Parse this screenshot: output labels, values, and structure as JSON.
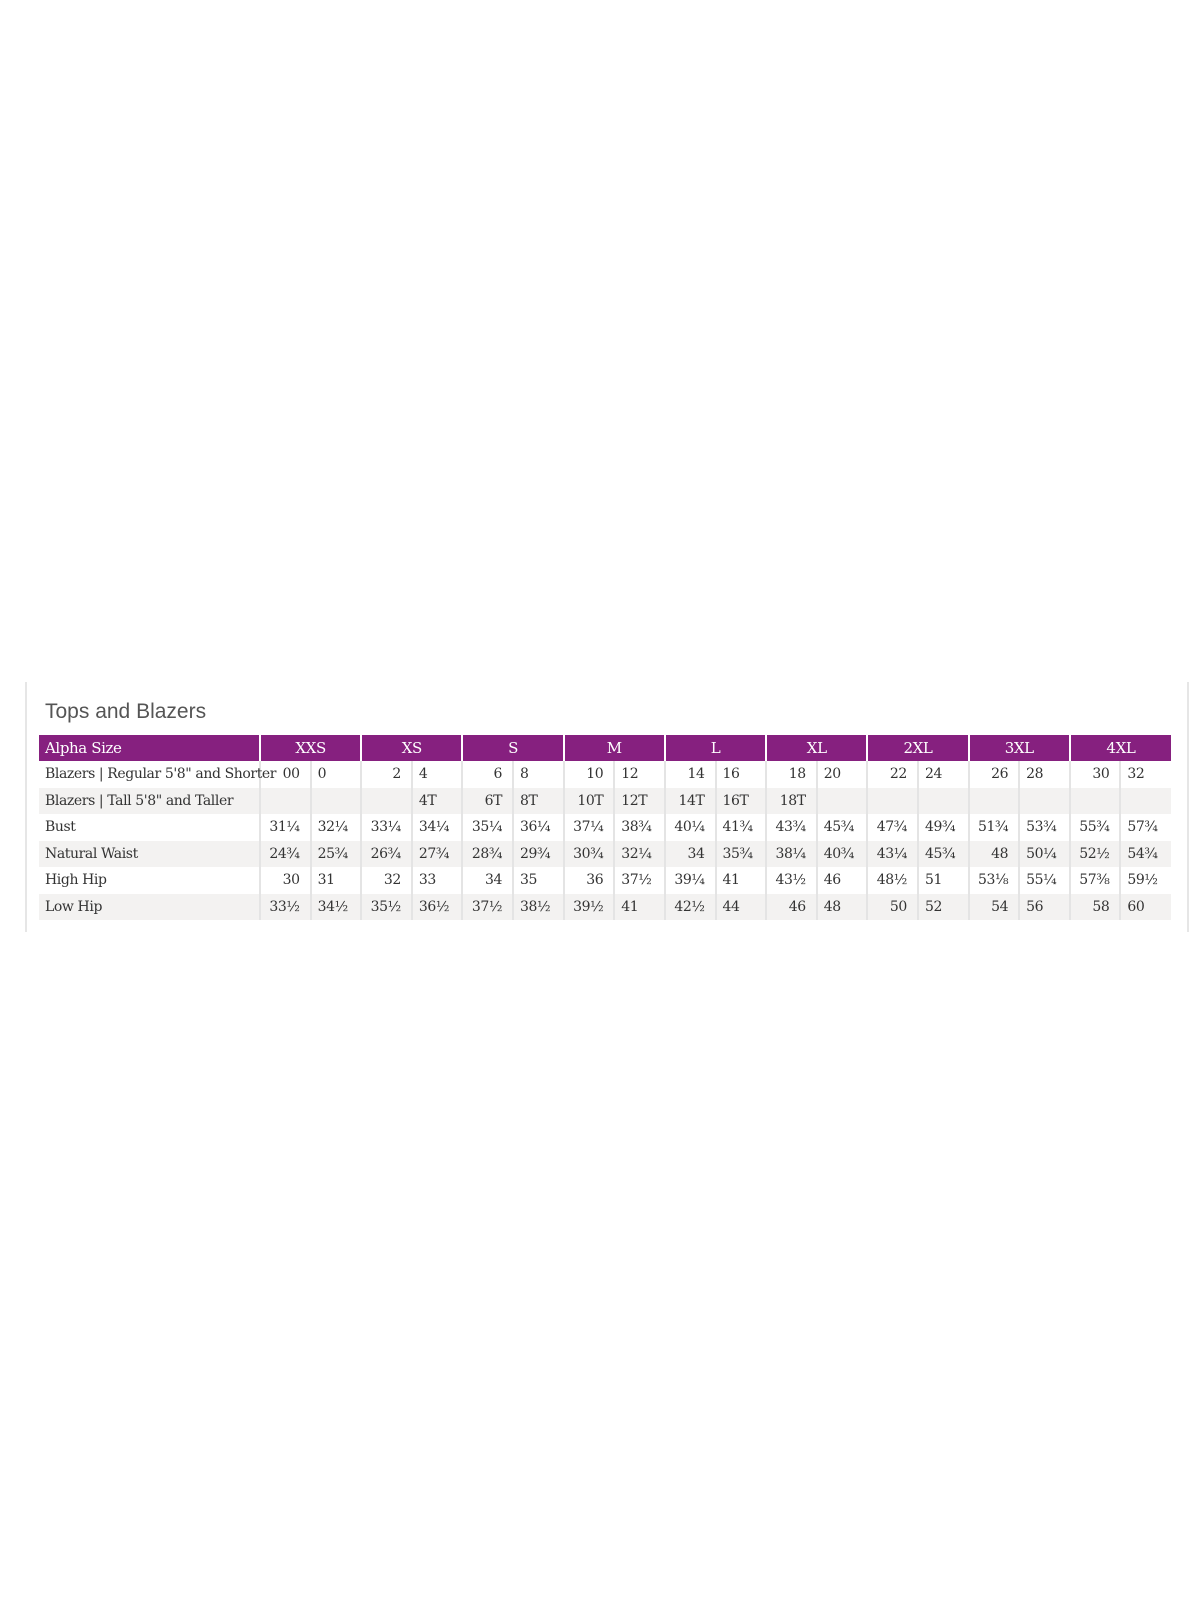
{
  "title": "Tops and Blazers",
  "header": {
    "label": "Alpha Size",
    "sizes": [
      "XXS",
      "XS",
      "S",
      "M",
      "L",
      "XL",
      "2XL",
      "3XL",
      "4XL"
    ]
  },
  "colors": {
    "header_bg": "#86207f",
    "alt_row": "#f3f2f1"
  },
  "rows": [
    {
      "label": "Blazers | Regular 5'8\" and Shorter",
      "values": [
        "00",
        "0",
        "2",
        "4",
        "6",
        "8",
        "10",
        "12",
        "14",
        "16",
        "18",
        "20",
        "22",
        "24",
        "26",
        "28",
        "30",
        "32"
      ]
    },
    {
      "label": "Blazers | Tall 5'8\" and Taller",
      "values": [
        "",
        "",
        "",
        "4T",
        "6T",
        "8T",
        "10T",
        "12T",
        "14T",
        "16T",
        "18T",
        "",
        "",
        "",
        "",
        "",
        "",
        ""
      ]
    },
    {
      "label": "Bust",
      "values": [
        "31¼",
        "32¼",
        "33¼",
        "34¼",
        "35¼",
        "36¼",
        "37¼",
        "38¾",
        "40¼",
        "41¾",
        "43¾",
        "45¾",
        "47¾",
        "49¾",
        "51¾",
        "53¾",
        "55¾",
        "57¾"
      ]
    },
    {
      "label": "Natural Waist",
      "values": [
        "24¾",
        "25¾",
        "26¾",
        "27¾",
        "28¾",
        "29¾",
        "30¾",
        "32¼",
        "34",
        "35¾",
        "38¼",
        "40¾",
        "43¼",
        "45¾",
        "48",
        "50¼",
        "52½",
        "54¾"
      ]
    },
    {
      "label": "High Hip",
      "values": [
        "30",
        "31",
        "32",
        "33",
        "34",
        "35",
        "36",
        "37½",
        "39¼",
        "41",
        "43½",
        "46",
        "48½",
        "51",
        "53⅛",
        "55¼",
        "57⅜",
        "59½"
      ]
    },
    {
      "label": "Low Hip",
      "values": [
        "33½",
        "34½",
        "35½",
        "36½",
        "37½",
        "38½",
        "39½",
        "41",
        "42½",
        "44",
        "46",
        "48",
        "50",
        "52",
        "54",
        "56",
        "58",
        "60"
      ]
    }
  ]
}
